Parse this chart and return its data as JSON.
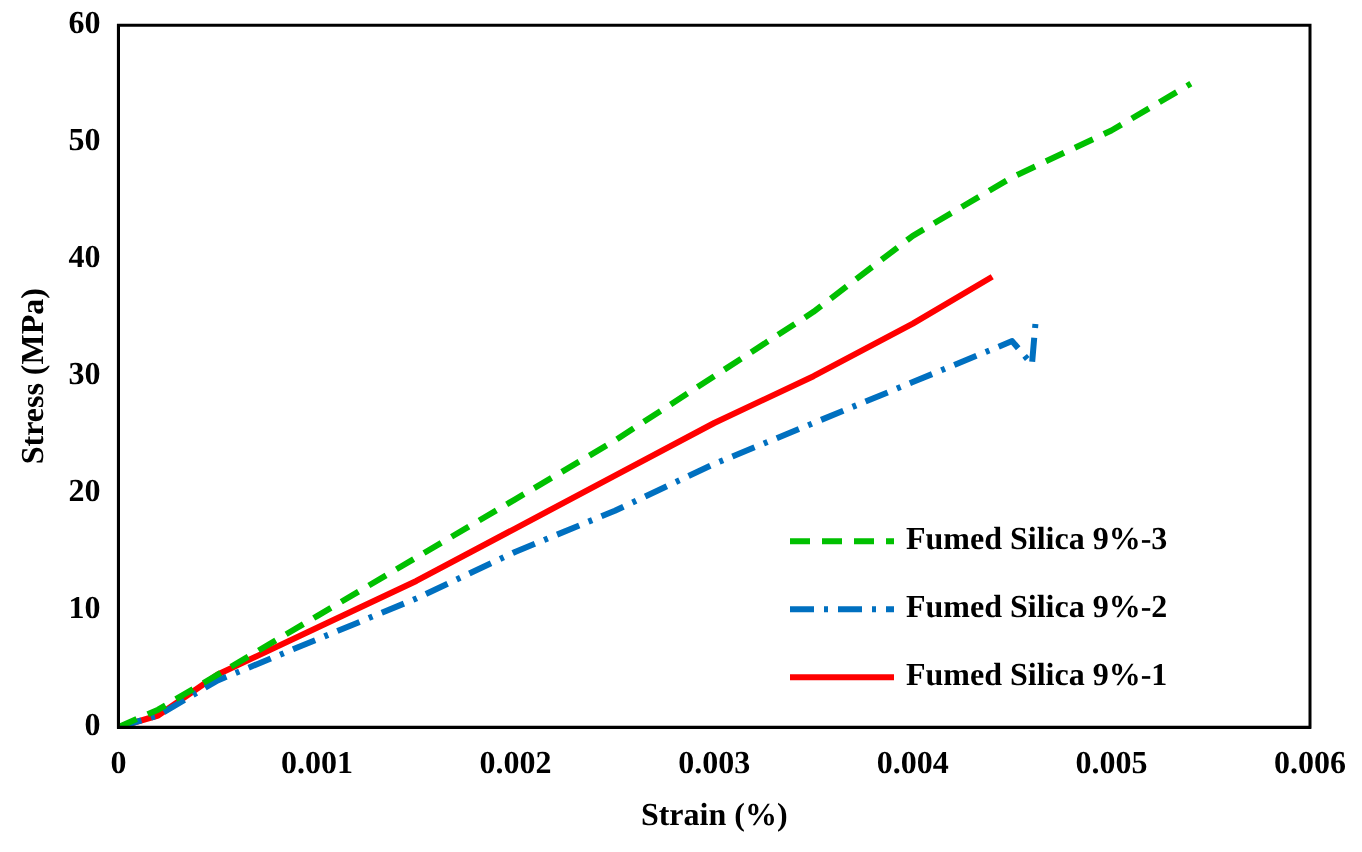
{
  "chart_data": {
    "type": "line",
    "xlabel": "Strain (%)",
    "ylabel": "Stress (MPa)",
    "xlim": [
      0,
      0.006
    ],
    "xticks": [
      0,
      0.001,
      0.002,
      0.003,
      0.004,
      0.005,
      0.006
    ],
    "ylim": [
      0,
      60
    ],
    "yticks": [
      0,
      10,
      20,
      30,
      40,
      50,
      60
    ],
    "grid": false,
    "legend": "bottom right",
    "marker": "none",
    "series": [
      {
        "name": "Fumed Silica 9%-3",
        "color": "#00c000",
        "line_style": "dashed",
        "x": [
          0,
          0.0002,
          0.0005,
          0.001,
          0.0015,
          0.002,
          0.0025,
          0.003,
          0.0035,
          0.004,
          0.0045,
          0.005,
          0.0054
        ],
        "values": [
          0,
          1.5,
          4.5,
          9.5,
          14.5,
          19.5,
          24.5,
          30,
          35.5,
          42,
          47,
          51,
          55
        ]
      },
      {
        "name": "Fumed Silica 9%-2",
        "color": "#0070c0",
        "line_style": "dashdot",
        "x": [
          0,
          0.0002,
          0.0005,
          0.001,
          0.0015,
          0.002,
          0.0025,
          0.003,
          0.0035,
          0.004,
          0.0045,
          0.0046,
          0.00462
        ],
        "values": [
          0,
          1,
          4,
          7.5,
          11,
          15,
          18.5,
          22.5,
          26,
          29.5,
          33,
          31,
          35
        ]
      },
      {
        "name": "Fumed Silica 9%-1",
        "color": "#ff0000",
        "line_style": "solid",
        "x": [
          0,
          0.0002,
          0.0005,
          0.001,
          0.0015,
          0.002,
          0.0025,
          0.003,
          0.0035,
          0.004,
          0.0044
        ],
        "values": [
          0,
          1,
          4.5,
          8.5,
          12.5,
          17,
          21.5,
          26,
          30,
          34.5,
          38.5
        ]
      }
    ]
  }
}
